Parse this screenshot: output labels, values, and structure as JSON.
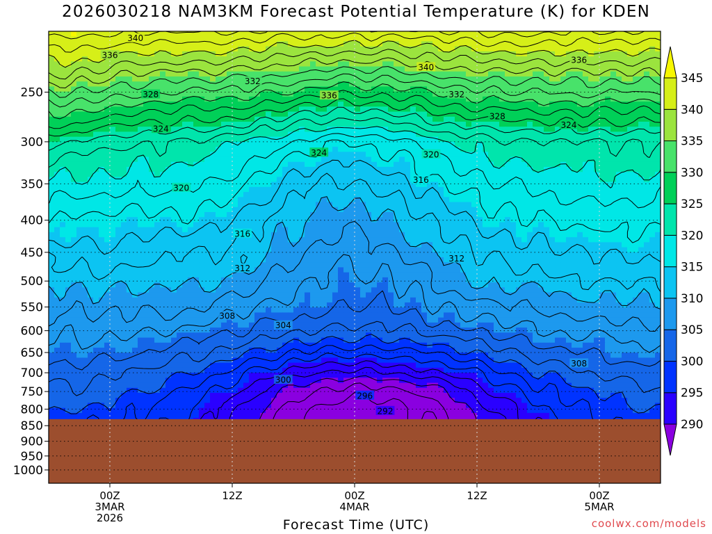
{
  "title": "2026030218 NAM3KM Forecast Potential Temperature (K) for KDEN",
  "xlabel": "Forecast Time (UTC)",
  "credit": "coolwx.com/models",
  "colors": {
    "ground": "#9c4e2e",
    "contour": "#000000",
    "grid": "#bbbbbb",
    "levels": [
      "#8a00e0",
      "#2a00ff",
      "#0033ff",
      "#1566e8",
      "#1d99ee",
      "#0cc4f2",
      "#00e7e6",
      "#00e5ac",
      "#00d058",
      "#48e26a",
      "#9be43e",
      "#d6ef18",
      "#f7f700"
    ]
  },
  "chart_data": {
    "type": "heatmap",
    "title": "2026030218 NAM3KM Forecast Potential Temperature (K) for KDEN",
    "xlabel": "Forecast Time (UTC)",
    "ylabel": "",
    "x_ticks": [
      {
        "hour": 6,
        "label": [
          "00Z",
          "3MAR",
          "2026"
        ]
      },
      {
        "hour": 18,
        "label": [
          "12Z"
        ]
      },
      {
        "hour": 30,
        "label": [
          "00Z",
          "4MAR"
        ]
      },
      {
        "hour": 42,
        "label": [
          "12Z"
        ]
      },
      {
        "hour": 54,
        "label": [
          "00Z",
          "5MAR"
        ]
      }
    ],
    "xlim": [
      0,
      60
    ],
    "y_ticks": [
      250,
      300,
      350,
      400,
      450,
      500,
      550,
      600,
      650,
      700,
      750,
      800,
      850,
      900,
      950,
      1000
    ],
    "ylim_hpa": [
      200,
      1050
    ],
    "surface_pressure_hpa": 830,
    "colorbar": {
      "levels": [
        290,
        295,
        300,
        305,
        310,
        315,
        320,
        325,
        330,
        335,
        340,
        345
      ],
      "labels": [
        "290",
        "295",
        "300",
        "305",
        "310",
        "315",
        "320",
        "325",
        "330",
        "335",
        "340",
        "345"
      ]
    },
    "contour_labels": [
      {
        "value": 340,
        "hour": 8.5,
        "p": 205
      },
      {
        "value": 336,
        "hour": 6,
        "p": 218
      },
      {
        "value": 340,
        "hour": 37,
        "p": 228
      },
      {
        "value": 336,
        "hour": 52,
        "p": 222
      },
      {
        "value": 332,
        "hour": 20,
        "p": 240
      },
      {
        "value": 328,
        "hour": 10,
        "p": 252
      },
      {
        "value": 336,
        "hour": 27.5,
        "p": 253
      },
      {
        "value": 332,
        "hour": 40,
        "p": 252
      },
      {
        "value": 328,
        "hour": 44,
        "p": 273
      },
      {
        "value": 324,
        "hour": 11,
        "p": 286
      },
      {
        "value": 324,
        "hour": 51,
        "p": 282
      },
      {
        "value": 324,
        "hour": 26.5,
        "p": 312
      },
      {
        "value": 320,
        "hour": 37.5,
        "p": 314
      },
      {
        "value": 316,
        "hour": 36.5,
        "p": 345
      },
      {
        "value": 320,
        "hour": 13,
        "p": 355
      },
      {
        "value": 316,
        "hour": 19,
        "p": 420
      },
      {
        "value": 312,
        "hour": 19,
        "p": 477
      },
      {
        "value": 312,
        "hour": 40,
        "p": 460
      },
      {
        "value": 308,
        "hour": 17.5,
        "p": 568
      },
      {
        "value": 304,
        "hour": 23,
        "p": 588
      },
      {
        "value": 308,
        "hour": 52,
        "p": 676
      },
      {
        "value": 300,
        "hour": 23,
        "p": 718
      },
      {
        "value": 296,
        "hour": 31,
        "p": 761
      },
      {
        "value": 292,
        "hour": 33,
        "p": 805
      }
    ],
    "contour_interval": 2,
    "grid": true
  }
}
